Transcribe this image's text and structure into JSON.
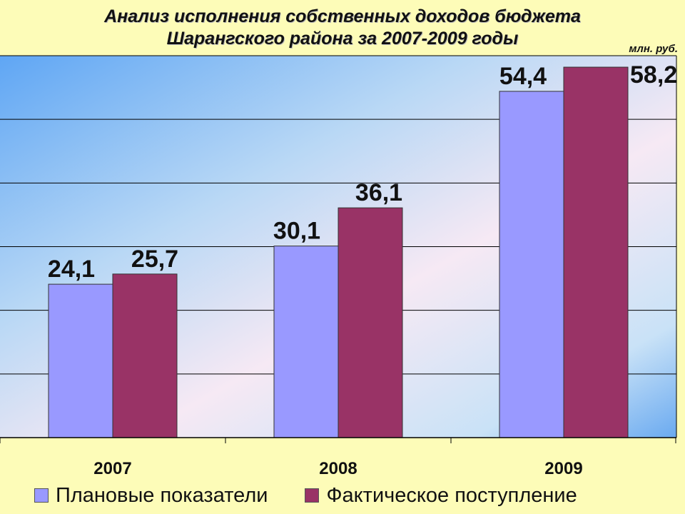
{
  "chart_data": {
    "type": "bar",
    "title_lines": [
      "Анализ исполнения собственных доходов бюджета",
      "Шарангского района за 2007-2009 годы"
    ],
    "unit": "млн. руб.",
    "categories": [
      "2007",
      "2008",
      "2009"
    ],
    "series": [
      {
        "name": "Плановые показатели",
        "values": [
          24.1,
          30.1,
          54.4
        ],
        "labels": [
          "24,1",
          "30,1",
          "54,4"
        ],
        "color": "#9999ff"
      },
      {
        "name": "Фактическое поступление",
        "values": [
          25.7,
          36.1,
          58.2
        ],
        "labels": [
          "25,7",
          "36,1",
          "58,2"
        ],
        "color": "#993366"
      }
    ],
    "ylim": [
      0,
      60
    ],
    "grid": true,
    "legend": "bottom"
  }
}
